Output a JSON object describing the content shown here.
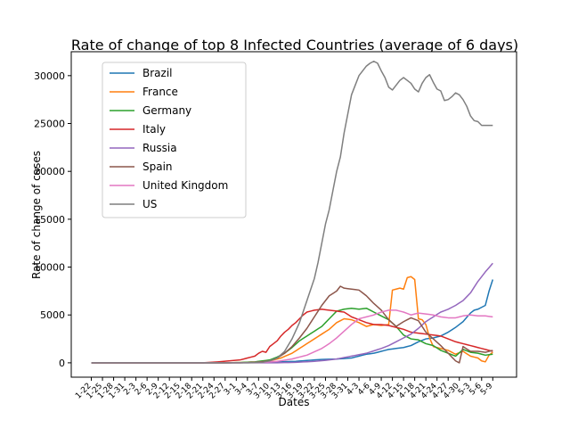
{
  "chart_data": {
    "type": "line",
    "title": "Rate of change of top 8 Infected Countries (average of 6 days)",
    "xlabel": "Dates",
    "ylabel": "Rate of change of cases",
    "ylim": [
      -1500,
      32500
    ],
    "yticks": [
      0,
      5000,
      10000,
      15000,
      20000,
      25000,
      30000
    ],
    "legend_position": "top-left",
    "grid": false,
    "x_tick_labels": [
      "1-22",
      "1-25",
      "1-28",
      "1-31",
      "2-3",
      "2-6",
      "2-9",
      "2-12",
      "2-15",
      "2-18",
      "2-21",
      "2-24",
      "2-27",
      "3-1",
      "3-4",
      "3-7",
      "3-10",
      "3-13",
      "3-16",
      "3-19",
      "3-22",
      "3-25",
      "3-28",
      "3-31",
      "4-3",
      "4-6",
      "4-9",
      "4-12",
      "4-15",
      "4-18",
      "4-21",
      "4-24",
      "4-27",
      "4-30",
      "5-3",
      "5-6",
      "5-9"
    ],
    "x_tick_step": 3,
    "num_points": 109,
    "series": [
      {
        "name": "Brazil",
        "color": "#1f77b4",
        "keypoints": [
          [
            0,
            0
          ],
          [
            36,
            0
          ],
          [
            46,
            40
          ],
          [
            50,
            100
          ],
          [
            55,
            150
          ],
          [
            58,
            250
          ],
          [
            62,
            350
          ],
          [
            66,
            400
          ],
          [
            70,
            500
          ],
          [
            72,
            700
          ],
          [
            74,
            900
          ],
          [
            76,
            1000
          ],
          [
            78,
            1200
          ],
          [
            80,
            1400
          ],
          [
            82,
            1500
          ],
          [
            84,
            1600
          ],
          [
            86,
            1800
          ],
          [
            88,
            2200
          ],
          [
            90,
            2500
          ],
          [
            92,
            2600
          ],
          [
            94,
            2800
          ],
          [
            96,
            3200
          ],
          [
            98,
            3700
          ],
          [
            100,
            4300
          ],
          [
            102,
            5200
          ],
          [
            103,
            5500
          ],
          [
            104,
            5600
          ],
          [
            106,
            6000
          ],
          [
            107,
            7500
          ],
          [
            108,
            8700
          ],
          [
            109,
            9000
          ],
          [
            110,
            9000
          ]
        ]
      },
      {
        "name": "France",
        "color": "#ff7f0e",
        "keypoints": [
          [
            0,
            0
          ],
          [
            36,
            0
          ],
          [
            40,
            30
          ],
          [
            44,
            100
          ],
          [
            48,
            200
          ],
          [
            51,
            500
          ],
          [
            54,
            1000
          ],
          [
            56,
            1500
          ],
          [
            58,
            2000
          ],
          [
            60,
            2500
          ],
          [
            62,
            3000
          ],
          [
            64,
            3500
          ],
          [
            66,
            4200
          ],
          [
            68,
            4600
          ],
          [
            70,
            4500
          ],
          [
            72,
            4200
          ],
          [
            74,
            3800
          ],
          [
            76,
            4000
          ],
          [
            78,
            3900
          ],
          [
            80,
            4000
          ],
          [
            81,
            7600
          ],
          [
            82,
            7700
          ],
          [
            83,
            7800
          ],
          [
            84,
            7700
          ],
          [
            85,
            8900
          ],
          [
            86,
            9000
          ],
          [
            87,
            8700
          ],
          [
            88,
            4600
          ],
          [
            89,
            4500
          ],
          [
            90,
            4000
          ],
          [
            91,
            2600
          ],
          [
            92,
            1700
          ],
          [
            94,
            1500
          ],
          [
            96,
            1300
          ],
          [
            98,
            900
          ],
          [
            100,
            1200
          ],
          [
            102,
            700
          ],
          [
            104,
            500
          ],
          [
            105,
            200
          ],
          [
            106,
            100
          ],
          [
            107,
            800
          ],
          [
            108,
            1100
          ],
          [
            110,
            1000
          ]
        ]
      },
      {
        "name": "Germany",
        "color": "#2ca02c",
        "keypoints": [
          [
            0,
            0
          ],
          [
            36,
            0
          ],
          [
            40,
            30
          ],
          [
            44,
            100
          ],
          [
            48,
            300
          ],
          [
            50,
            600
          ],
          [
            52,
            1000
          ],
          [
            54,
            1600
          ],
          [
            56,
            2300
          ],
          [
            58,
            2800
          ],
          [
            60,
            3300
          ],
          [
            62,
            3800
          ],
          [
            64,
            4600
          ],
          [
            66,
            5400
          ],
          [
            68,
            5600
          ],
          [
            70,
            5700
          ],
          [
            72,
            5600
          ],
          [
            74,
            5700
          ],
          [
            76,
            5300
          ],
          [
            78,
            4900
          ],
          [
            80,
            4500
          ],
          [
            82,
            3800
          ],
          [
            84,
            2900
          ],
          [
            86,
            2500
          ],
          [
            88,
            2400
          ],
          [
            90,
            2000
          ],
          [
            92,
            1800
          ],
          [
            94,
            1300
          ],
          [
            96,
            1000
          ],
          [
            98,
            700
          ],
          [
            100,
            1400
          ],
          [
            102,
            1100
          ],
          [
            104,
            1000
          ],
          [
            106,
            800
          ],
          [
            108,
            900
          ],
          [
            110,
            1000
          ]
        ]
      },
      {
        "name": "Italy",
        "color": "#d62728",
        "keypoints": [
          [
            0,
            0
          ],
          [
            30,
            0
          ],
          [
            34,
            100
          ],
          [
            37,
            200
          ],
          [
            40,
            300
          ],
          [
            42,
            500
          ],
          [
            44,
            700
          ],
          [
            45,
            1000
          ],
          [
            46,
            1200
          ],
          [
            47,
            1100
          ],
          [
            48,
            1700
          ],
          [
            49,
            2000
          ],
          [
            50,
            2300
          ],
          [
            51,
            2800
          ],
          [
            52,
            3200
          ],
          [
            53,
            3500
          ],
          [
            54,
            3900
          ],
          [
            55,
            4200
          ],
          [
            56,
            4600
          ],
          [
            57,
            5000
          ],
          [
            58,
            5300
          ],
          [
            60,
            5500
          ],
          [
            62,
            5600
          ],
          [
            64,
            5500
          ],
          [
            66,
            5400
          ],
          [
            68,
            5300
          ],
          [
            70,
            4800
          ],
          [
            72,
            4500
          ],
          [
            74,
            4200
          ],
          [
            76,
            4000
          ],
          [
            78,
            4000
          ],
          [
            80,
            3900
          ],
          [
            82,
            3700
          ],
          [
            84,
            3500
          ],
          [
            86,
            3200
          ],
          [
            88,
            3100
          ],
          [
            90,
            3000
          ],
          [
            92,
            2900
          ],
          [
            94,
            2800
          ],
          [
            96,
            2500
          ],
          [
            98,
            2200
          ],
          [
            100,
            2000
          ],
          [
            102,
            1800
          ],
          [
            104,
            1600
          ],
          [
            106,
            1400
          ],
          [
            108,
            1200
          ],
          [
            110,
            1100
          ]
        ]
      },
      {
        "name": "Russia",
        "color": "#9467bd",
        "keypoints": [
          [
            0,
            0
          ],
          [
            50,
            0
          ],
          [
            55,
            50
          ],
          [
            60,
            150
          ],
          [
            64,
            300
          ],
          [
            66,
            400
          ],
          [
            70,
            700
          ],
          [
            74,
            1000
          ],
          [
            78,
            1500
          ],
          [
            80,
            1800
          ],
          [
            82,
            2200
          ],
          [
            84,
            2600
          ],
          [
            86,
            3000
          ],
          [
            88,
            3600
          ],
          [
            90,
            4300
          ],
          [
            92,
            4800
          ],
          [
            94,
            5300
          ],
          [
            96,
            5600
          ],
          [
            98,
            6000
          ],
          [
            100,
            6500
          ],
          [
            102,
            7300
          ],
          [
            104,
            8500
          ],
          [
            106,
            9500
          ],
          [
            108,
            10400
          ],
          [
            110,
            10700
          ]
        ]
      },
      {
        "name": "Spain",
        "color": "#8c564b",
        "keypoints": [
          [
            0,
            0
          ],
          [
            40,
            0
          ],
          [
            44,
            50
          ],
          [
            48,
            200
          ],
          [
            50,
            500
          ],
          [
            52,
            1000
          ],
          [
            54,
            1700
          ],
          [
            56,
            2600
          ],
          [
            58,
            3600
          ],
          [
            60,
            4800
          ],
          [
            62,
            6000
          ],
          [
            64,
            7000
          ],
          [
            66,
            7500
          ],
          [
            67,
            8000
          ],
          [
            68,
            7800
          ],
          [
            70,
            7700
          ],
          [
            72,
            7600
          ],
          [
            74,
            7000
          ],
          [
            76,
            6200
          ],
          [
            78,
            5500
          ],
          [
            80,
            4500
          ],
          [
            82,
            3800
          ],
          [
            84,
            4300
          ],
          [
            86,
            4700
          ],
          [
            88,
            4400
          ],
          [
            90,
            3200
          ],
          [
            92,
            2500
          ],
          [
            94,
            1800
          ],
          [
            96,
            1000
          ],
          [
            98,
            200
          ],
          [
            99,
            0
          ],
          [
            100,
            1700
          ],
          [
            102,
            1200
          ],
          [
            104,
            1200
          ],
          [
            106,
            1100
          ],
          [
            108,
            1300
          ],
          [
            110,
            1200
          ]
        ]
      },
      {
        "name": "United Kingdom",
        "color": "#e377c2",
        "keypoints": [
          [
            0,
            0
          ],
          [
            40,
            0
          ],
          [
            46,
            50
          ],
          [
            50,
            150
          ],
          [
            54,
            400
          ],
          [
            58,
            800
          ],
          [
            62,
            1500
          ],
          [
            64,
            2000
          ],
          [
            66,
            2600
          ],
          [
            68,
            3300
          ],
          [
            70,
            4000
          ],
          [
            72,
            4600
          ],
          [
            74,
            4800
          ],
          [
            76,
            5000
          ],
          [
            78,
            5300
          ],
          [
            80,
            5500
          ],
          [
            82,
            5500
          ],
          [
            84,
            5300
          ],
          [
            86,
            5000
          ],
          [
            88,
            5200
          ],
          [
            90,
            5100
          ],
          [
            92,
            5000
          ],
          [
            94,
            4800
          ],
          [
            96,
            4700
          ],
          [
            98,
            4700
          ],
          [
            100,
            4900
          ],
          [
            102,
            5000
          ],
          [
            104,
            4900
          ],
          [
            106,
            4900
          ],
          [
            108,
            4800
          ],
          [
            110,
            4800
          ]
        ]
      },
      {
        "name": "US",
        "color": "#7f7f7f",
        "keypoints": [
          [
            0,
            0
          ],
          [
            42,
            0
          ],
          [
            46,
            50
          ],
          [
            48,
            200
          ],
          [
            50,
            500
          ],
          [
            52,
            1200
          ],
          [
            54,
            2500
          ],
          [
            56,
            4200
          ],
          [
            58,
            6500
          ],
          [
            60,
            8800
          ],
          [
            61,
            10500
          ],
          [
            62,
            12500
          ],
          [
            63,
            14500
          ],
          [
            64,
            16000
          ],
          [
            65,
            18000
          ],
          [
            66,
            20000
          ],
          [
            67,
            21500
          ],
          [
            68,
            24000
          ],
          [
            69,
            26000
          ],
          [
            70,
            28000
          ],
          [
            71,
            29000
          ],
          [
            72,
            30000
          ],
          [
            73,
            30500
          ],
          [
            74,
            31000
          ],
          [
            75,
            31300
          ],
          [
            76,
            31500
          ],
          [
            77,
            31300
          ],
          [
            78,
            30500
          ],
          [
            79,
            29800
          ],
          [
            80,
            28800
          ],
          [
            81,
            28500
          ],
          [
            82,
            29000
          ],
          [
            83,
            29500
          ],
          [
            84,
            29800
          ],
          [
            85,
            29500
          ],
          [
            86,
            29200
          ],
          [
            87,
            28600
          ],
          [
            88,
            28300
          ],
          [
            89,
            29200
          ],
          [
            90,
            29800
          ],
          [
            91,
            30100
          ],
          [
            92,
            29300
          ],
          [
            93,
            28600
          ],
          [
            94,
            28400
          ],
          [
            95,
            27400
          ],
          [
            96,
            27500
          ],
          [
            97,
            27800
          ],
          [
            98,
            28200
          ],
          [
            99,
            28000
          ],
          [
            100,
            27500
          ],
          [
            101,
            26800
          ],
          [
            102,
            25800
          ],
          [
            103,
            25300
          ],
          [
            104,
            25200
          ],
          [
            105,
            24800
          ]
        ]
      }
    ]
  }
}
